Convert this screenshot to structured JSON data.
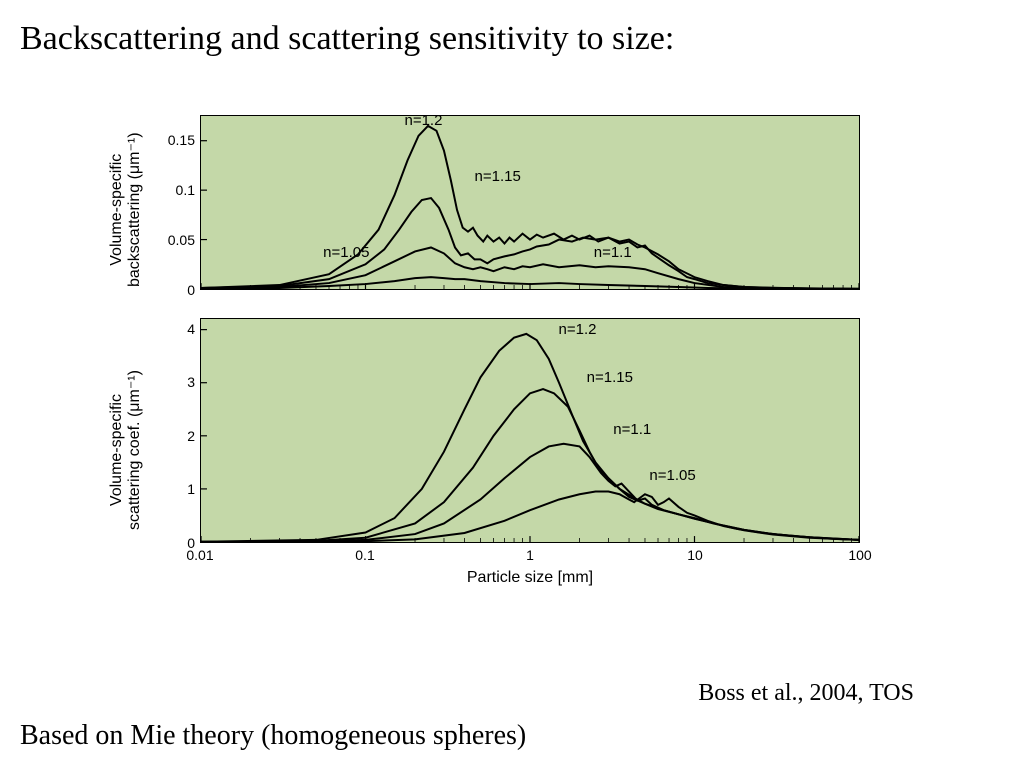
{
  "title": "Backscattering and scattering sensitivity to size:",
  "citation": "Boss et al., 2004, TOS",
  "footer": "Based on Mie theory (homogeneous spheres)",
  "xlabel": "Particle size [mm]",
  "x_axis": {
    "scale": "log",
    "min": 0.01,
    "max": 100,
    "ticks": [
      0.01,
      0.1,
      1,
      10,
      100
    ],
    "tick_labels": [
      "0.01",
      "0.1",
      "1",
      "10",
      "100"
    ]
  },
  "panel_top": {
    "ylabel_line1": "Volume-specific",
    "ylabel_line2": "backscattering (μm⁻¹)",
    "ylim": [
      0,
      0.175
    ],
    "yticks": [
      0,
      0.05,
      0.1,
      0.15
    ],
    "ytick_labels": [
      "0",
      "0.05",
      "0.1",
      "0.15"
    ],
    "background_color": "#c4d8a8",
    "border_color": "#000000",
    "line_color": "#000000",
    "line_width": 2.0,
    "curves": {
      "n105": {
        "label": "n=1.05",
        "label_pos_mm": 0.065,
        "points": [
          [
            0.01,
            0.0005
          ],
          [
            0.03,
            0.001
          ],
          [
            0.06,
            0.003
          ],
          [
            0.1,
            0.005
          ],
          [
            0.15,
            0.008
          ],
          [
            0.2,
            0.011
          ],
          [
            0.25,
            0.012
          ],
          [
            0.3,
            0.011
          ],
          [
            0.35,
            0.01
          ],
          [
            0.4,
            0.01
          ],
          [
            0.5,
            0.008
          ],
          [
            0.7,
            0.006
          ],
          [
            1,
            0.005
          ],
          [
            1.5,
            0.006
          ],
          [
            2,
            0.005
          ],
          [
            3,
            0.004
          ],
          [
            5,
            0.003
          ],
          [
            8,
            0.002
          ],
          [
            12,
            0.001
          ],
          [
            20,
            0.0005
          ],
          [
            50,
            0.0002
          ],
          [
            100,
            0.0001
          ]
        ]
      },
      "n110": {
        "label": "n=1.1",
        "label_pos_mm": 2.6,
        "points": [
          [
            0.01,
            0.001
          ],
          [
            0.03,
            0.002
          ],
          [
            0.06,
            0.006
          ],
          [
            0.1,
            0.014
          ],
          [
            0.15,
            0.028
          ],
          [
            0.2,
            0.038
          ],
          [
            0.25,
            0.042
          ],
          [
            0.3,
            0.036
          ],
          [
            0.35,
            0.026
          ],
          [
            0.4,
            0.022
          ],
          [
            0.45,
            0.02
          ],
          [
            0.5,
            0.022
          ],
          [
            0.55,
            0.02
          ],
          [
            0.6,
            0.018
          ],
          [
            0.7,
            0.022
          ],
          [
            0.8,
            0.02
          ],
          [
            0.9,
            0.023
          ],
          [
            1,
            0.022
          ],
          [
            1.2,
            0.025
          ],
          [
            1.5,
            0.022
          ],
          [
            2,
            0.024
          ],
          [
            2.5,
            0.022
          ],
          [
            3,
            0.023
          ],
          [
            4,
            0.022
          ],
          [
            5,
            0.02
          ],
          [
            6,
            0.016
          ],
          [
            8,
            0.01
          ],
          [
            10,
            0.006
          ],
          [
            15,
            0.002
          ],
          [
            25,
            0.001
          ],
          [
            50,
            0.0005
          ],
          [
            100,
            0.0002
          ]
        ]
      },
      "n115": {
        "label": "n=1.15",
        "label_pos_mm": 0.43,
        "points": [
          [
            0.01,
            0.001
          ],
          [
            0.03,
            0.003
          ],
          [
            0.06,
            0.01
          ],
          [
            0.1,
            0.025
          ],
          [
            0.13,
            0.04
          ],
          [
            0.16,
            0.06
          ],
          [
            0.19,
            0.078
          ],
          [
            0.22,
            0.09
          ],
          [
            0.25,
            0.092
          ],
          [
            0.28,
            0.082
          ],
          [
            0.32,
            0.06
          ],
          [
            0.35,
            0.042
          ],
          [
            0.38,
            0.034
          ],
          [
            0.42,
            0.036
          ],
          [
            0.46,
            0.03
          ],
          [
            0.5,
            0.03
          ],
          [
            0.55,
            0.026
          ],
          [
            0.6,
            0.03
          ],
          [
            0.7,
            0.033
          ],
          [
            0.8,
            0.035
          ],
          [
            0.9,
            0.038
          ],
          [
            1,
            0.04
          ],
          [
            1.1,
            0.043
          ],
          [
            1.3,
            0.045
          ],
          [
            1.5,
            0.05
          ],
          [
            1.8,
            0.048
          ],
          [
            2.1,
            0.052
          ],
          [
            2.5,
            0.05
          ],
          [
            3,
            0.052
          ],
          [
            3.5,
            0.048
          ],
          [
            4,
            0.05
          ],
          [
            4.5,
            0.045
          ],
          [
            5,
            0.042
          ],
          [
            6,
            0.035
          ],
          [
            7,
            0.028
          ],
          [
            8,
            0.02
          ],
          [
            10,
            0.012
          ],
          [
            12,
            0.008
          ],
          [
            15,
            0.004
          ],
          [
            20,
            0.002
          ],
          [
            35,
            0.001
          ],
          [
            60,
            0.0005
          ],
          [
            100,
            0.0002
          ]
        ]
      },
      "n120": {
        "label": "n=1.2",
        "label_pos_mm": 0.27,
        "points": [
          [
            0.01,
            0.001
          ],
          [
            0.03,
            0.004
          ],
          [
            0.06,
            0.015
          ],
          [
            0.09,
            0.035
          ],
          [
            0.12,
            0.06
          ],
          [
            0.15,
            0.095
          ],
          [
            0.18,
            0.13
          ],
          [
            0.21,
            0.155
          ],
          [
            0.24,
            0.165
          ],
          [
            0.27,
            0.16
          ],
          [
            0.3,
            0.14
          ],
          [
            0.33,
            0.11
          ],
          [
            0.36,
            0.08
          ],
          [
            0.39,
            0.062
          ],
          [
            0.42,
            0.058
          ],
          [
            0.45,
            0.062
          ],
          [
            0.48,
            0.054
          ],
          [
            0.52,
            0.048
          ],
          [
            0.55,
            0.054
          ],
          [
            0.6,
            0.048
          ],
          [
            0.65,
            0.052
          ],
          [
            0.7,
            0.046
          ],
          [
            0.75,
            0.052
          ],
          [
            0.8,
            0.048
          ],
          [
            0.9,
            0.056
          ],
          [
            1,
            0.05
          ],
          [
            1.1,
            0.055
          ],
          [
            1.2,
            0.052
          ],
          [
            1.4,
            0.056
          ],
          [
            1.6,
            0.05
          ],
          [
            1.8,
            0.054
          ],
          [
            2,
            0.05
          ],
          [
            2.3,
            0.054
          ],
          [
            2.6,
            0.048
          ],
          [
            3,
            0.052
          ],
          [
            3.5,
            0.046
          ],
          [
            4,
            0.048
          ],
          [
            4.5,
            0.042
          ],
          [
            5,
            0.044
          ],
          [
            5.5,
            0.036
          ],
          [
            6.2,
            0.03
          ],
          [
            7,
            0.024
          ],
          [
            8,
            0.018
          ],
          [
            9,
            0.012
          ],
          [
            10,
            0.01
          ],
          [
            12,
            0.006
          ],
          [
            15,
            0.004
          ],
          [
            20,
            0.002
          ],
          [
            30,
            0.001
          ],
          [
            50,
            0.0005
          ],
          [
            100,
            0.0002
          ]
        ]
      }
    }
  },
  "panel_bot": {
    "ylabel_line1": "Volume-specific",
    "ylabel_line2": "scattering coef. (μm⁻¹)",
    "ylim": [
      0,
      4.2
    ],
    "yticks": [
      0,
      1,
      2,
      3,
      4
    ],
    "ytick_labels": [
      "0",
      "1",
      "2",
      "3",
      "4"
    ],
    "background_color": "#c4d8a8",
    "border_color": "#000000",
    "line_color": "#000000",
    "line_width": 2.0,
    "curves": {
      "n105": {
        "label": "n=1.05",
        "label_pos_mm": 5.0,
        "points": [
          [
            0.01,
            0.001
          ],
          [
            0.05,
            0.005
          ],
          [
            0.1,
            0.015
          ],
          [
            0.2,
            0.05
          ],
          [
            0.4,
            0.17
          ],
          [
            0.7,
            0.4
          ],
          [
            1,
            0.6
          ],
          [
            1.5,
            0.8
          ],
          [
            2,
            0.9
          ],
          [
            2.5,
            0.95
          ],
          [
            3,
            0.95
          ],
          [
            3.5,
            0.9
          ],
          [
            4,
            0.8
          ],
          [
            4.3,
            0.75
          ],
          [
            4.6,
            0.82
          ],
          [
            5,
            0.9
          ],
          [
            5.5,
            0.85
          ],
          [
            6,
            0.7
          ],
          [
            6.5,
            0.75
          ],
          [
            7,
            0.82
          ],
          [
            8,
            0.66
          ],
          [
            9,
            0.55
          ],
          [
            10,
            0.5
          ],
          [
            12,
            0.4
          ],
          [
            15,
            0.3
          ],
          [
            20,
            0.22
          ],
          [
            30,
            0.14
          ],
          [
            50,
            0.08
          ],
          [
            100,
            0.04
          ]
        ]
      },
      "n110": {
        "label": "n=1.1",
        "label_pos_mm": 3.0,
        "points": [
          [
            0.01,
            0.002
          ],
          [
            0.05,
            0.01
          ],
          [
            0.1,
            0.04
          ],
          [
            0.2,
            0.15
          ],
          [
            0.3,
            0.35
          ],
          [
            0.5,
            0.8
          ],
          [
            0.7,
            1.2
          ],
          [
            1,
            1.6
          ],
          [
            1.3,
            1.8
          ],
          [
            1.6,
            1.85
          ],
          [
            2,
            1.8
          ],
          [
            2.3,
            1.6
          ],
          [
            2.7,
            1.3
          ],
          [
            3.0,
            1.15
          ],
          [
            3.3,
            1.05
          ],
          [
            3.6,
            1.1
          ],
          [
            4,
            0.95
          ],
          [
            4.5,
            0.78
          ],
          [
            5,
            0.82
          ],
          [
            5.5,
            0.7
          ],
          [
            6.5,
            0.6
          ],
          [
            8,
            0.52
          ],
          [
            10,
            0.45
          ],
          [
            13,
            0.35
          ],
          [
            18,
            0.25
          ],
          [
            25,
            0.18
          ],
          [
            40,
            0.11
          ],
          [
            70,
            0.06
          ],
          [
            100,
            0.04
          ]
        ]
      },
      "n115": {
        "label": "n=1.15",
        "label_pos_mm": 2.1,
        "points": [
          [
            0.01,
            0.003
          ],
          [
            0.05,
            0.02
          ],
          [
            0.1,
            0.08
          ],
          [
            0.2,
            0.35
          ],
          [
            0.3,
            0.75
          ],
          [
            0.45,
            1.4
          ],
          [
            0.6,
            2.0
          ],
          [
            0.8,
            2.5
          ],
          [
            1,
            2.8
          ],
          [
            1.2,
            2.88
          ],
          [
            1.4,
            2.8
          ],
          [
            1.7,
            2.55
          ],
          [
            2,
            2.1
          ],
          [
            2.3,
            1.7
          ],
          [
            2.6,
            1.4
          ],
          [
            3,
            1.2
          ],
          [
            3.5,
            1.0
          ],
          [
            4,
            0.85
          ],
          [
            5,
            0.72
          ],
          [
            6,
            0.62
          ],
          [
            8,
            0.52
          ],
          [
            10,
            0.44
          ],
          [
            14,
            0.33
          ],
          [
            20,
            0.23
          ],
          [
            30,
            0.15
          ],
          [
            50,
            0.09
          ],
          [
            100,
            0.04
          ]
        ]
      },
      "n120": {
        "label": "n=1.2",
        "label_pos_mm": 1.4,
        "points": [
          [
            0.01,
            0.005
          ],
          [
            0.05,
            0.04
          ],
          [
            0.1,
            0.18
          ],
          [
            0.15,
            0.45
          ],
          [
            0.22,
            1.0
          ],
          [
            0.3,
            1.7
          ],
          [
            0.4,
            2.5
          ],
          [
            0.5,
            3.1
          ],
          [
            0.65,
            3.6
          ],
          [
            0.8,
            3.85
          ],
          [
            0.95,
            3.92
          ],
          [
            1.1,
            3.8
          ],
          [
            1.3,
            3.45
          ],
          [
            1.5,
            3.0
          ],
          [
            1.8,
            2.4
          ],
          [
            2.1,
            1.9
          ],
          [
            2.5,
            1.5
          ],
          [
            3,
            1.2
          ],
          [
            3.5,
            1.0
          ],
          [
            4.2,
            0.85
          ],
          [
            5,
            0.72
          ],
          [
            6.5,
            0.6
          ],
          [
            8,
            0.52
          ],
          [
            10,
            0.44
          ],
          [
            14,
            0.33
          ],
          [
            20,
            0.23
          ],
          [
            30,
            0.15
          ],
          [
            50,
            0.09
          ],
          [
            100,
            0.04
          ]
        ]
      }
    }
  }
}
